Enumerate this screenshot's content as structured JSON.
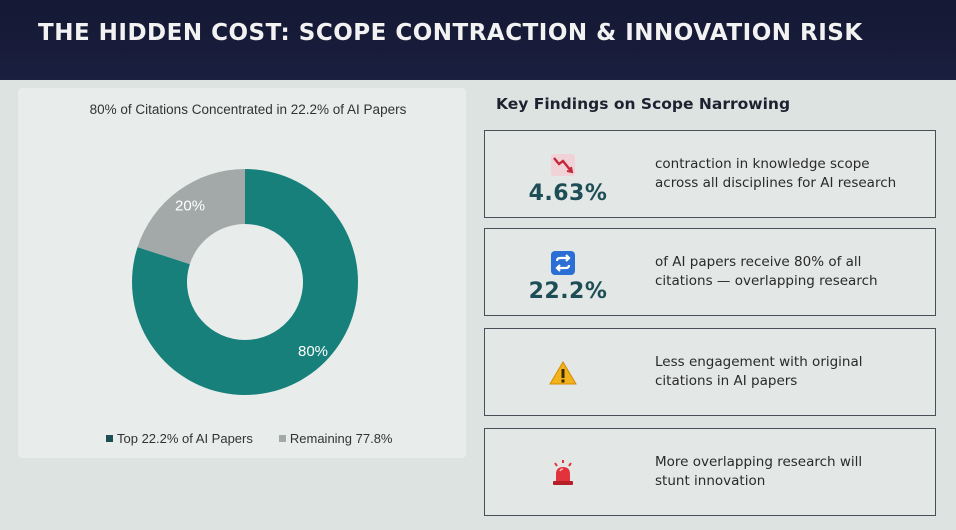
{
  "header": {
    "title": "THE HIDDEN COST: SCOPE CONTRACTION & INNOVATION RISK"
  },
  "chart_data": {
    "type": "pie",
    "title": "80% of Citations Concentrated in 22.2% of AI Papers",
    "slices": [
      {
        "label": "Top 22.2% of AI Papers",
        "value": 80,
        "display": "80%",
        "color": "#17807b"
      },
      {
        "label": "Remaining 77.8%",
        "value": 20,
        "display": "20%",
        "color": "#a3a8a8"
      }
    ],
    "donut": true,
    "legend_position": "bottom"
  },
  "findings": {
    "title": "Key Findings on Scope Narrowing",
    "cards": [
      {
        "icon": "chart-down-icon",
        "stat": "4.63%",
        "desc1": "contraction in knowledge scope",
        "desc2": "across all disciplines for AI research"
      },
      {
        "icon": "repeat-icon",
        "stat": "22.2%",
        "desc1": "of AI papers receive 80% of all",
        "desc2": "citations — overlapping research"
      },
      {
        "icon": "warning-icon",
        "stat": "",
        "desc1": "Less engagement with original",
        "desc2": "citations in AI papers"
      },
      {
        "icon": "siren-icon",
        "stat": "",
        "desc1": "More overlapping research will",
        "desc2": "stunt innovation"
      }
    ]
  }
}
